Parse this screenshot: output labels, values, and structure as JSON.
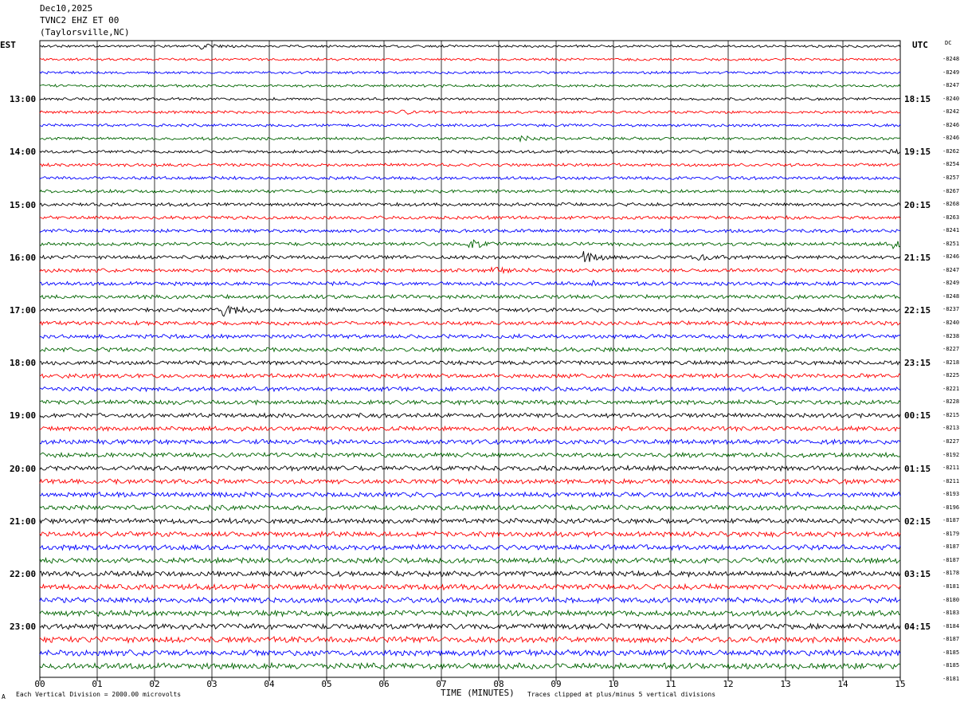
{
  "header": {
    "date": "Dec10,2025",
    "station": "TVNC2 EHZ ET 00",
    "location": "(Taylorsville,NC)"
  },
  "left_timezone": "EST",
  "right_timezone": "UTC",
  "dc_label": "DC",
  "footer": {
    "left_mark": "A",
    "scale_note": "Each Vertical Division = 2000.00 microvolts",
    "clip_note": "Traces clipped at plus/minus 5 vertical divisions"
  },
  "colors": {
    "cycle": [
      "#000000",
      "#ff0000",
      "#0000ff",
      "#006400"
    ],
    "grid": "#000000"
  },
  "chart_data": {
    "type": "line",
    "title": "",
    "xlabel": "TIME (MINUTES)",
    "xlim": [
      0,
      15
    ],
    "x_ticks": [
      "00",
      "01",
      "02",
      "03",
      "04",
      "05",
      "06",
      "07",
      "08",
      "09",
      "10",
      "11",
      "12",
      "13",
      "14",
      "15"
    ],
    "left_hour_labels": [
      "13:00",
      "14:00",
      "15:00",
      "16:00",
      "17:00",
      "18:00",
      "19:00",
      "20:00",
      "21:00",
      "22:00",
      "23:00"
    ],
    "right_hour_labels": [
      "18:15",
      "19:15",
      "20:15",
      "21:15",
      "22:15",
      "23:15",
      "00:15",
      "01:15",
      "02:15",
      "03:15",
      "04:15"
    ],
    "trace_dc_offsets": [
      "-8248",
      "-8249",
      "-8247",
      "-8240",
      "-8242",
      "-8246",
      "-8246",
      "-8262",
      "-8254",
      "-8257",
      "-8267",
      "-8268",
      "-8263",
      "-8241",
      "-8251",
      "-8246",
      "-8247",
      "-8249",
      "-8248",
      "-8237",
      "-8240",
      "-8238",
      "-8227",
      "-8218",
      "-8225",
      "-8221",
      "-8228",
      "-8215",
      "-8213",
      "-8227",
      "-8192",
      "-8211",
      "-8211",
      "-8193",
      "-8196",
      "-8187",
      "-8179",
      "-8187",
      "-8187",
      "-8178",
      "-8181",
      "-8180",
      "-8183",
      "-8184",
      "-8187",
      "-8185",
      "-8185",
      "-8181"
    ],
    "trace_count": 48,
    "traces_per_hour": 4,
    "minutes_per_trace": 15,
    "events": [
      {
        "trace": 0,
        "minute": 2.8,
        "amplitude": 3
      },
      {
        "trace": 5,
        "minute": 6.3,
        "amplitude": 2
      },
      {
        "trace": 7,
        "minute": 8.4,
        "amplitude": 2
      },
      {
        "trace": 8,
        "minute": 14.8,
        "amplitude": 2
      },
      {
        "trace": 15,
        "minute": 7.5,
        "amplitude": 5
      },
      {
        "trace": 15,
        "minute": 14.9,
        "amplitude": 4
      },
      {
        "trace": 16,
        "minute": 9.5,
        "amplitude": 6
      },
      {
        "trace": 16,
        "minute": 11.5,
        "amplitude": 3
      },
      {
        "trace": 17,
        "minute": 7.9,
        "amplitude": 3
      },
      {
        "trace": 18,
        "minute": 9.6,
        "amplitude": 2
      },
      {
        "trace": 20,
        "minute": 3.2,
        "amplitude": 6
      }
    ]
  }
}
